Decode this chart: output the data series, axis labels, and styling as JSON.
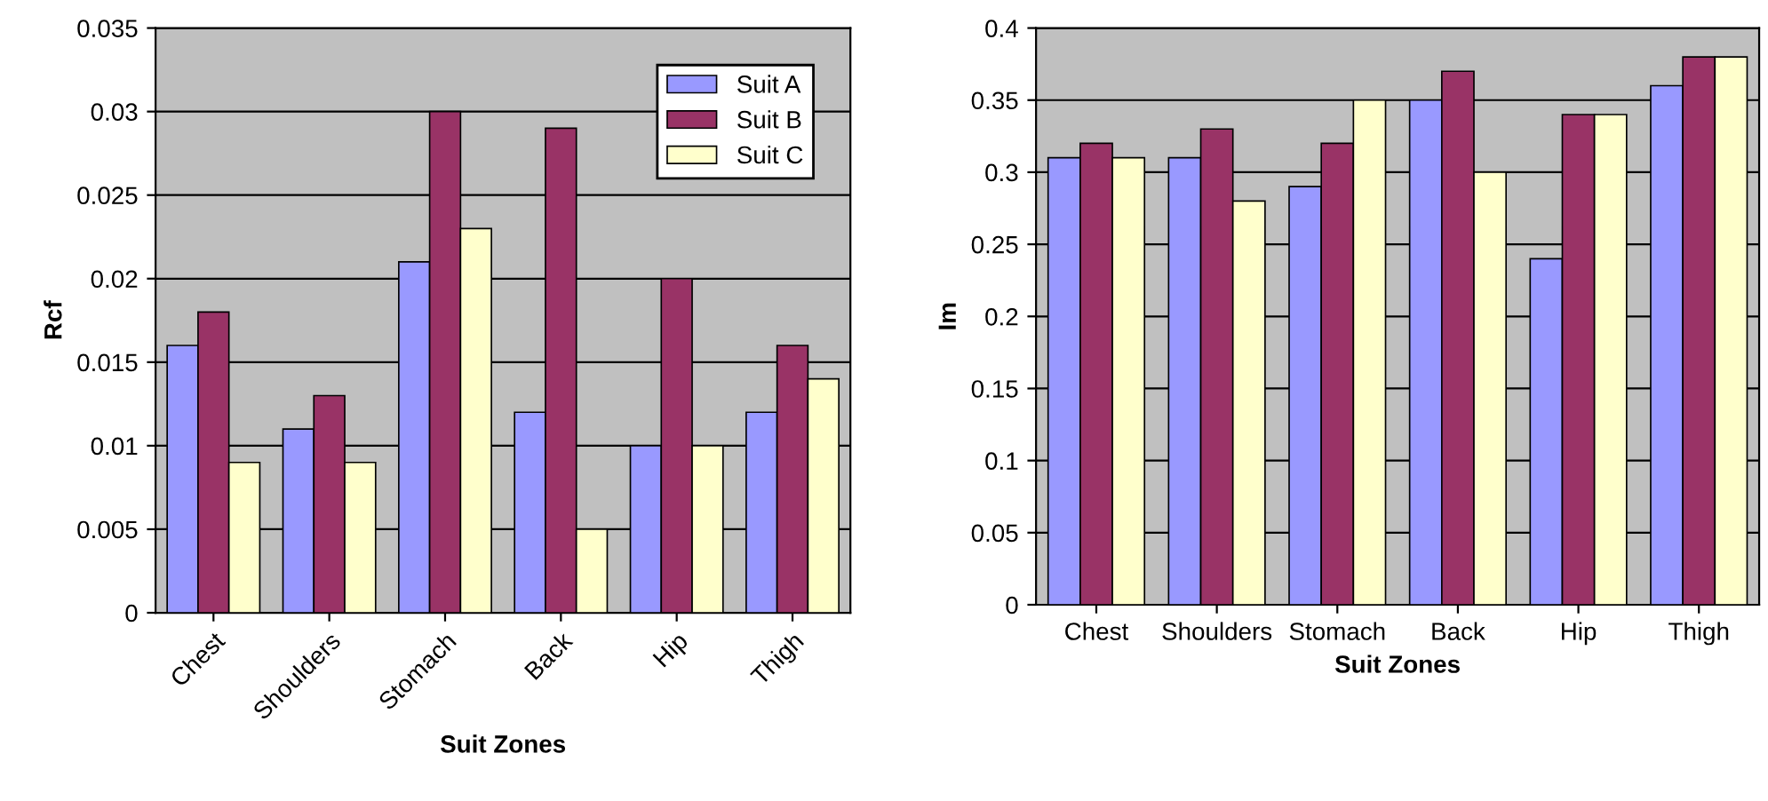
{
  "chart_data": [
    {
      "type": "bar",
      "xlabel": "Suit Zones",
      "ylabel": "Rcf",
      "categories": [
        "Chest",
        "Shoulders",
        "Stomach",
        "Back",
        "Hip",
        "Thigh"
      ],
      "series": [
        {
          "name": "Suit A",
          "color": "#9999ff",
          "values": [
            0.016,
            0.011,
            0.021,
            0.012,
            0.01,
            0.012
          ]
        },
        {
          "name": "Suit B",
          "color": "#993366",
          "values": [
            0.018,
            0.013,
            0.03,
            0.029,
            0.02,
            0.016
          ]
        },
        {
          "name": "Suit C",
          "color": "#ffffcc",
          "values": [
            0.009,
            0.009,
            0.023,
            0.005,
            0.01,
            0.014
          ]
        }
      ],
      "ylim": [
        0,
        0.035
      ],
      "yticks": [
        0,
        0.005,
        0.01,
        0.015,
        0.02,
        0.025,
        0.03,
        0.035
      ],
      "grid": "y",
      "legend": "top right"
    },
    {
      "type": "bar",
      "xlabel": "Suit Zones",
      "ylabel": "Im",
      "categories": [
        "Chest",
        "Shoulders",
        "Stomach",
        "Back",
        "Hip",
        "Thigh"
      ],
      "series": [
        {
          "color": "#9999ff",
          "values": [
            0.31,
            0.31,
            0.29,
            0.35,
            0.24,
            0.36
          ]
        },
        {
          "color": "#993366",
          "values": [
            0.32,
            0.33,
            0.32,
            0.37,
            0.34,
            0.38
          ]
        },
        {
          "color": "#ffffcc",
          "values": [
            0.31,
            0.28,
            0.35,
            0.3,
            0.34,
            0.38
          ]
        }
      ],
      "ylim": [
        0,
        0.4
      ],
      "yticks": [
        0,
        0.05,
        0.1,
        0.15,
        0.2,
        0.25,
        0.3,
        0.35,
        0.4
      ],
      "grid": "y"
    }
  ]
}
